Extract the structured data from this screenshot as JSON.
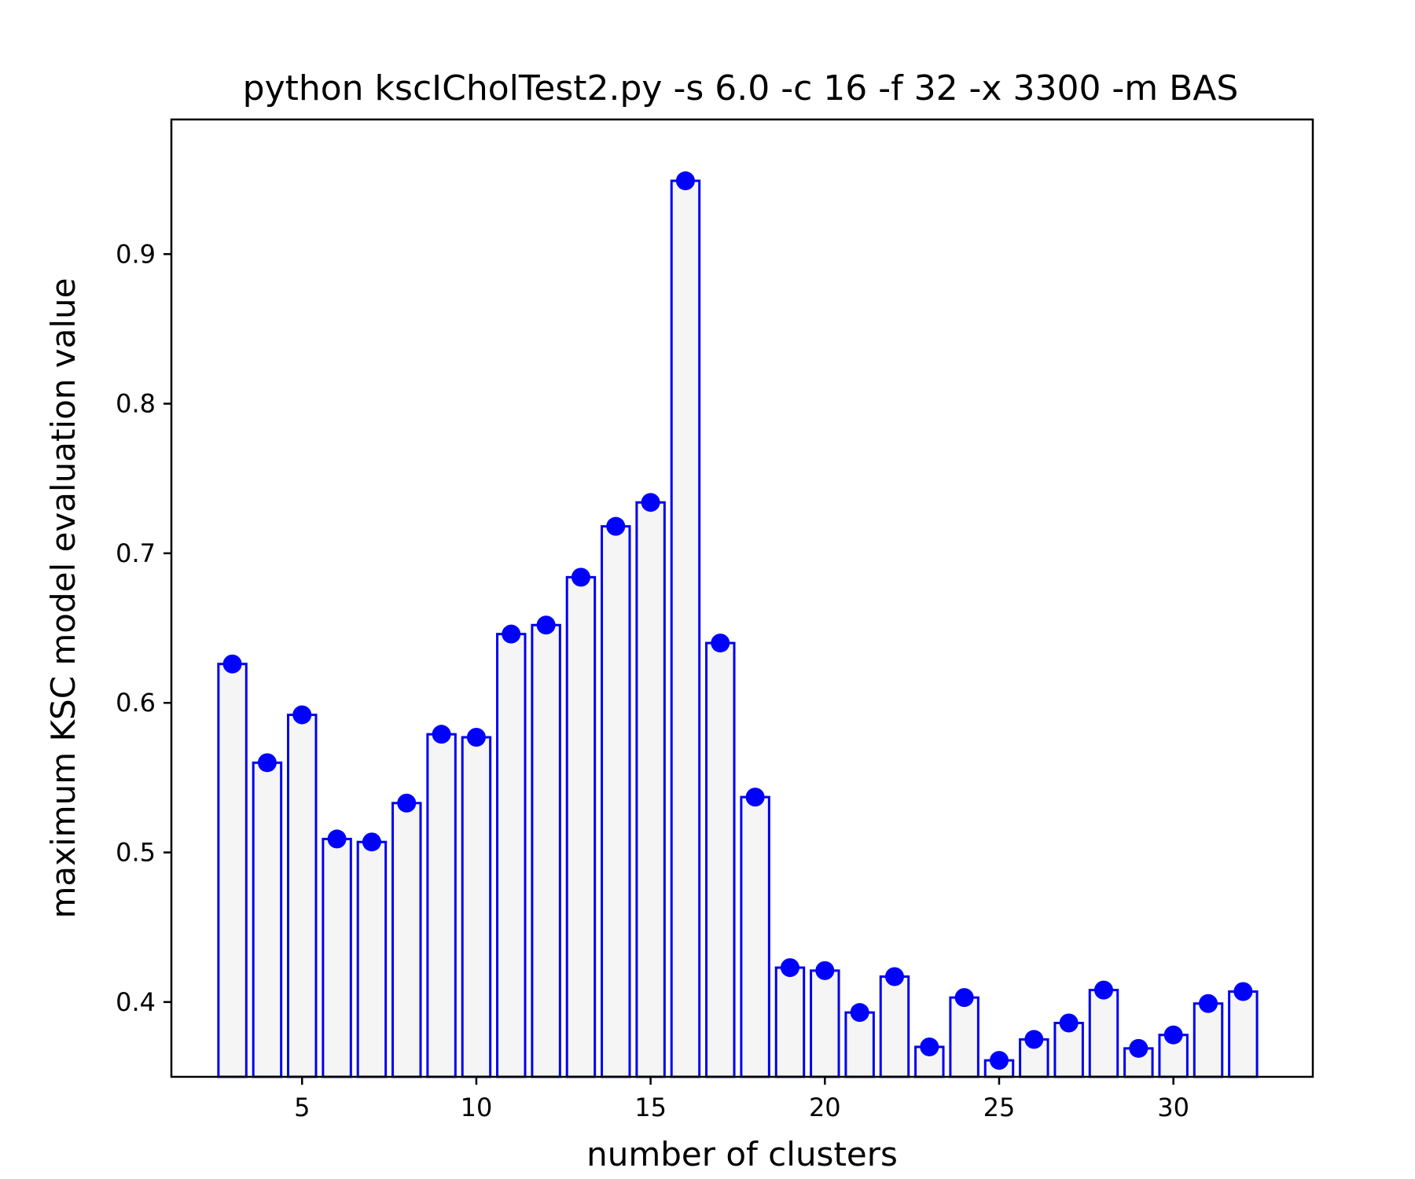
{
  "chart_data": {
    "type": "bar",
    "title": "python kscICholTest2.py -s 6.0 -c 16 -f 32 -x 3300 -m BAS",
    "xlabel": "number of clusters",
    "ylabel": "maximum KSC model evaluation value",
    "xlim": [
      1.25,
      34.0
    ],
    "ylim": [
      0.35,
      0.99
    ],
    "xticks": [
      5,
      10,
      15,
      20,
      25,
      30
    ],
    "yticks": [
      0.4,
      0.5,
      0.6,
      0.7,
      0.8,
      0.9
    ],
    "ytick_labels": [
      "0.4",
      "0.5",
      "0.6",
      "0.7",
      "0.8",
      "0.9"
    ],
    "grid": false,
    "bar_fill": "#f5f5f5",
    "bar_edge": "#0000ee",
    "marker_color": "#0000ff",
    "x": [
      3,
      4,
      5,
      6,
      7,
      8,
      9,
      10,
      11,
      12,
      13,
      14,
      15,
      16,
      17,
      18,
      19,
      20,
      21,
      22,
      23,
      24,
      25,
      26,
      27,
      28,
      29,
      30,
      31,
      32
    ],
    "values": [
      0.626,
      0.56,
      0.592,
      0.509,
      0.507,
      0.533,
      0.579,
      0.577,
      0.646,
      0.652,
      0.684,
      0.718,
      0.734,
      0.949,
      0.64,
      0.537,
      0.423,
      0.421,
      0.393,
      0.417,
      0.37,
      0.403,
      0.361,
      0.375,
      0.386,
      0.408,
      0.369,
      0.378,
      0.399,
      0.407
    ]
  }
}
